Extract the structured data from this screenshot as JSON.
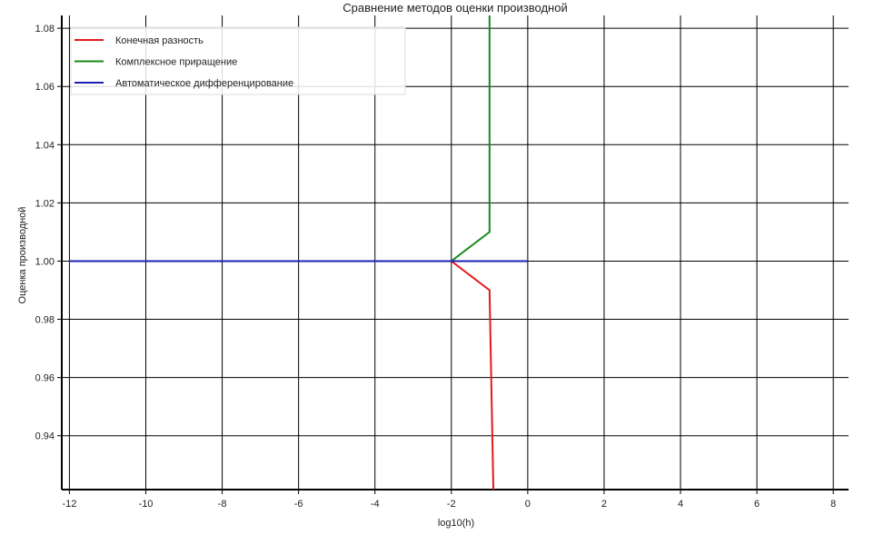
{
  "chart_data": {
    "type": "line",
    "title": "Сравнение методов оценки производной",
    "xlabel": "log10(h)",
    "ylabel": "Оценка производной",
    "xlim": [
      -12.2,
      8.4
    ],
    "ylim": [
      0.9215,
      1.0844
    ],
    "x_ticks": [
      -12,
      -10,
      -8,
      -6,
      -4,
      -2,
      0,
      2,
      4,
      6,
      8
    ],
    "x_tick_labels": [
      "-12",
      "-10",
      "-8",
      "-6",
      "-4",
      "-2",
      "0",
      "2",
      "4",
      "6",
      "8"
    ],
    "y_ticks": [
      0.94,
      0.96,
      0.98,
      1.0,
      1.02,
      1.04,
      1.06,
      1.08
    ],
    "y_tick_labels": [
      "0.94",
      "0.96",
      "0.98",
      "1.00",
      "1.02",
      "1.04",
      "1.06",
      "1.08"
    ],
    "grid": true,
    "legend_position": "top-left",
    "series": [
      {
        "name": "Конечная разность",
        "color": "#e31a1c",
        "x": [
          -12,
          -11,
          -10,
          -9,
          -8,
          -7,
          -6,
          -5,
          -4,
          -3,
          -2,
          -1,
          -0.9
        ],
        "y": [
          1.0,
          1.0,
          1.0,
          1.0,
          1.0,
          1.0,
          1.0,
          1.0,
          1.0,
          1.0,
          1.0,
          0.99,
          0.9215
        ]
      },
      {
        "name": "Комплексное приращение",
        "color": "#1a8a1a",
        "x": [
          -12,
          -11,
          -10,
          -9,
          -8,
          -7,
          -6,
          -5,
          -4,
          -3,
          -2,
          -1,
          -1
        ],
        "y": [
          1.0,
          1.0,
          1.0,
          1.0,
          1.0,
          1.0,
          1.0,
          1.0,
          1.0,
          1.0,
          1.0,
          1.01,
          1.0844
        ]
      },
      {
        "name": "Автоматическое дифференцирование",
        "color": "#1f1fb4",
        "x": [
          -12,
          -11,
          -10,
          -9,
          -8,
          -7,
          -6,
          -5,
          -4,
          -3,
          -2,
          -1,
          0
        ],
        "y": [
          1.0,
          1.0,
          1.0,
          1.0,
          1.0,
          1.0,
          1.0,
          1.0,
          1.0,
          1.0,
          1.0,
          1.0,
          1.0
        ]
      }
    ]
  }
}
